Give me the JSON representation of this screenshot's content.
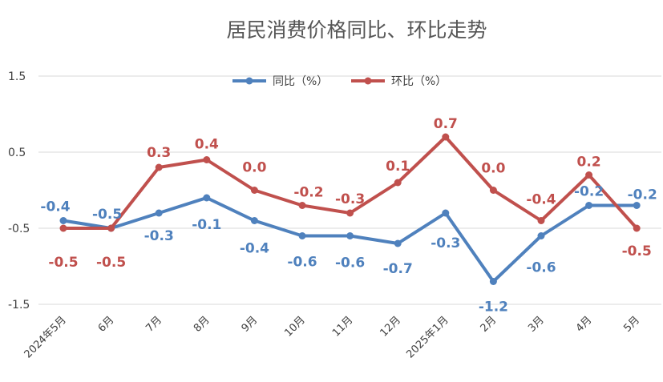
{
  "chart_data": {
    "type": "line",
    "title": "居民消费价格同比、环比走势",
    "categories": [
      "2024年5月",
      "6月",
      "7月",
      "8月",
      "9月",
      "10月",
      "11月",
      "12月",
      "2025年1月",
      "2月",
      "3月",
      "4月",
      "5月"
    ],
    "ylim": [
      -1.5,
      1.5
    ],
    "yticks": [
      "1.5",
      "0.5",
      "-0.5",
      "-1.5"
    ],
    "grid": true,
    "legend_position": "top",
    "series": [
      {
        "name": "同比（%）",
        "color": "#4F81BD",
        "values": [
          -0.4,
          -0.5,
          -0.3,
          -0.1,
          -0.4,
          -0.6,
          -0.6,
          -0.7,
          -0.3,
          -1.2,
          -0.6,
          -0.2,
          -0.2
        ],
        "labels": [
          "-0.4",
          "-0.5",
          "-0.3",
          "-0.1",
          "-0.4",
          "-0.6",
          "-0.6",
          "-0.7",
          "-0.3",
          "-1.2",
          "-0.6",
          "-0.2",
          "-0.2"
        ]
      },
      {
        "name": "环比（%）",
        "color": "#C0504D",
        "values": [
          -0.5,
          -0.5,
          0.3,
          0.4,
          0.0,
          -0.2,
          -0.3,
          0.1,
          0.7,
          0.0,
          -0.4,
          0.2,
          -0.5
        ],
        "labels": [
          "-0.5",
          "-0.5",
          "0.3",
          "0.4",
          "0.0",
          "-0.2",
          "-0.3",
          "0.1",
          "0.7",
          "0.0",
          "-0.4",
          "0.2",
          "-0.5"
        ]
      }
    ]
  }
}
